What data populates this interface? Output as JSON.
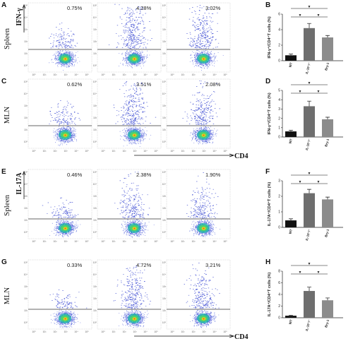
{
  "panel_labels": [
    "A",
    "B",
    "C",
    "D",
    "E",
    "F",
    "G",
    "H"
  ],
  "flow_groups": [
    {
      "row_label": "Spleen",
      "marker": "IFN-γ",
      "percents": [
        "0.75%",
        "4.28%",
        "3.02%"
      ],
      "density": [
        0.15,
        0.7,
        0.55
      ],
      "dot_level": "mid"
    },
    {
      "row_label": "MLN",
      "marker": "",
      "percents": [
        "0.62%",
        "3.51%",
        "2.08%"
      ],
      "density": [
        0.15,
        0.6,
        0.45
      ],
      "dot_level": "mid"
    },
    {
      "row_label": "Spleen",
      "marker": "IL-17A",
      "percents": [
        "0.46%",
        "2.38%",
        "1.90%"
      ],
      "density": [
        0.1,
        0.4,
        0.35
      ],
      "dot_level": "low"
    },
    {
      "row_label": "MLN",
      "marker": "",
      "percents": [
        "0.33%",
        "4.72%",
        "3.21%"
      ],
      "density": [
        0.08,
        0.55,
        0.45
      ],
      "dot_level": "low"
    }
  ],
  "x_marker": "CD4",
  "flow_tick_labels": [
    "10⁰",
    "10¹",
    "10²",
    "10³",
    "10⁴",
    "10⁵"
  ],
  "colors": {
    "wt": "#111111",
    "il10": "#6e6e6e",
    "bry1": "#8c8c8c",
    "dots": "#2233cc"
  },
  "chart_data": [
    {
      "type": "bar",
      "panel": "B",
      "categories": [
        "WT",
        "IL-10⁻/⁻",
        "Bry-1"
      ],
      "values": [
        0.7,
        4.2,
        3.0
      ],
      "errors": [
        0.15,
        0.6,
        0.25
      ],
      "ylabel": "IFN-γ⁺/CD4⁺T cells (%)",
      "ylim": [
        0,
        6
      ],
      "yticks": [
        "0",
        "2",
        "4",
        "6"
      ],
      "significance_markers": [
        "▼",
        "▼",
        "▼"
      ]
    },
    {
      "type": "bar",
      "panel": "D",
      "categories": [
        "WT",
        "IL-10⁻/⁻",
        "Bry-1"
      ],
      "values": [
        0.6,
        3.3,
        1.9
      ],
      "errors": [
        0.12,
        0.55,
        0.22
      ],
      "ylabel": "IFN-γ⁺/CD4⁺T cells (%)",
      "ylim": [
        0,
        5
      ],
      "yticks": [
        "0",
        "1",
        "2",
        "3",
        "4",
        "5"
      ],
      "significance_markers": [
        "▼",
        "▼",
        "▼"
      ]
    },
    {
      "type": "bar",
      "panel": "F",
      "categories": [
        "WT",
        "IL-10⁻/⁻",
        "Bry-1"
      ],
      "values": [
        0.45,
        2.2,
        1.8
      ],
      "errors": [
        0.1,
        0.25,
        0.15
      ],
      "ylabel": "IL-17A⁺/CD4⁺T cells (%)",
      "ylim": [
        0,
        3
      ],
      "yticks": [
        "0",
        "1",
        "2",
        "3"
      ],
      "significance_markers": [
        "▼",
        "▼",
        "▼"
      ]
    },
    {
      "type": "bar",
      "panel": "H",
      "categories": [
        "WT",
        "IL-10⁻/⁻",
        "Bry-1"
      ],
      "values": [
        0.35,
        4.6,
        3.0
      ],
      "errors": [
        0.08,
        0.65,
        0.4
      ],
      "ylabel": "IL-17A⁺/CD4⁺T cells (%)",
      "ylim": [
        0,
        8
      ],
      "yticks": [
        "0",
        "2",
        "4",
        "6",
        "8"
      ],
      "significance_markers": [
        "▼",
        "▼",
        "▼"
      ]
    }
  ]
}
